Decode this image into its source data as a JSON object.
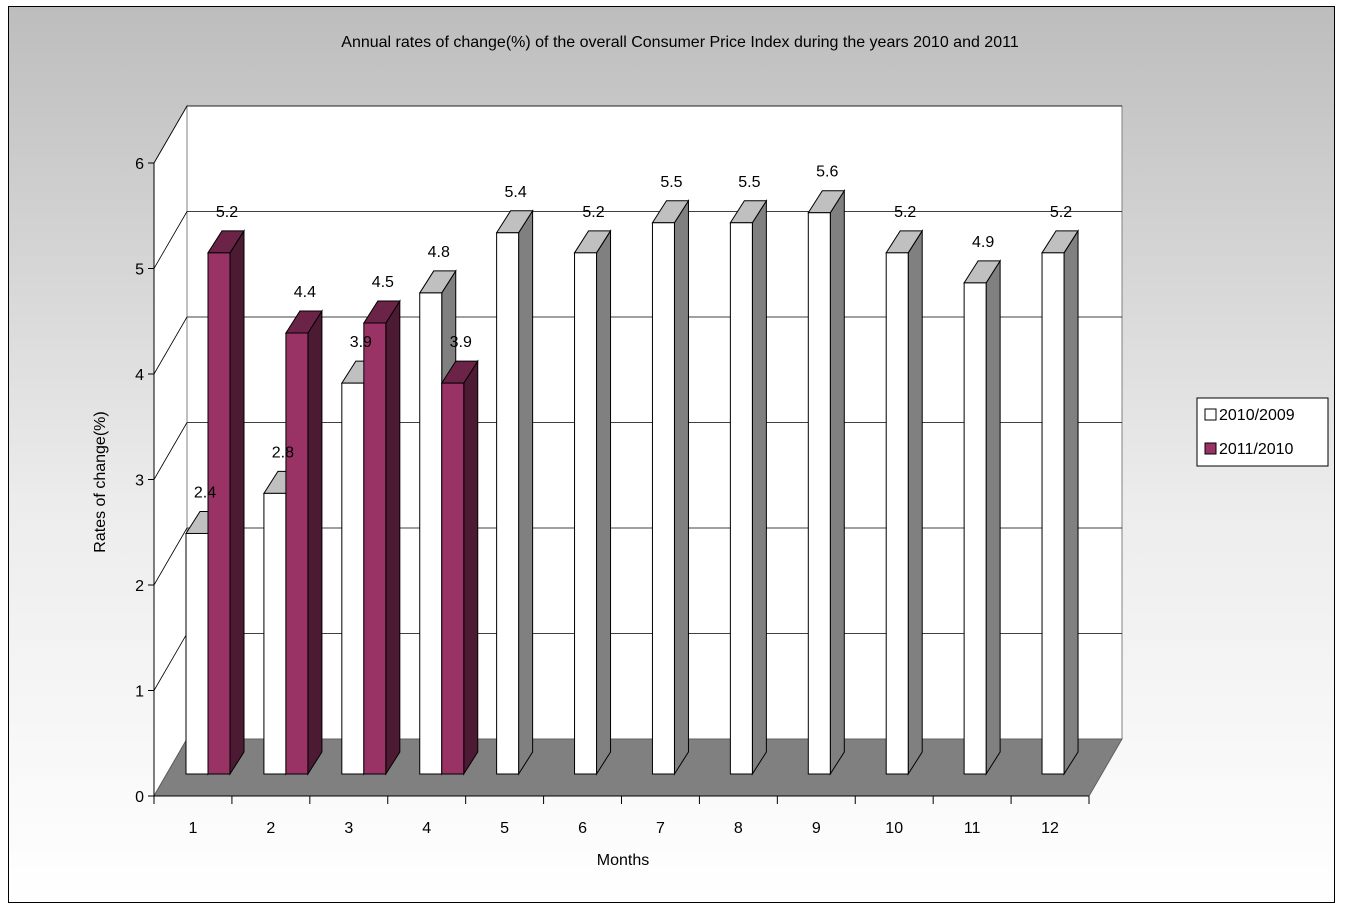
{
  "chart_data": {
    "type": "bar",
    "title": "Annual rates of change(%) of the overall Consumer Price Index during the years 2010 and 2011",
    "xlabel": "Months",
    "ylabel": "Rates of change(%)",
    "ylim": [
      0,
      6
    ],
    "yticks": [
      "0",
      "1",
      "2",
      "3",
      "4",
      "5",
      "6"
    ],
    "categories": [
      "1",
      "2",
      "3",
      "4",
      "5",
      "6",
      "7",
      "8",
      "9",
      "10",
      "11",
      "12"
    ],
    "grid": true,
    "legend_position": "right",
    "series": [
      {
        "name": "2010/2009",
        "color": "#ffffff",
        "values": [
          2.4,
          2.8,
          3.9,
          4.8,
          5.4,
          5.2,
          5.5,
          5.5,
          5.6,
          5.2,
          4.9,
          5.2
        ],
        "labels": [
          "2.4",
          "2.8",
          "3.9",
          "4.8",
          "5.4",
          "5.2",
          "5.5",
          "5.5",
          "5.6",
          "5.2",
          "4.9",
          "5.2"
        ]
      },
      {
        "name": "2011/2010",
        "color": "#993366",
        "values": [
          5.2,
          4.4,
          4.5,
          3.9,
          null,
          null,
          null,
          null,
          null,
          null,
          null,
          null
        ],
        "labels": [
          "5.2",
          "4.4",
          "4.5",
          "3.9",
          "",
          "",
          "",
          "",
          "",
          "",
          "",
          ""
        ]
      }
    ],
    "colors": {
      "plot_back_wall": "#ffffff",
      "floor": "#808080",
      "bar_side_white": "#808080",
      "bar_top_white": "#c0c0c0",
      "bar_side_purple": "#4d1a33",
      "bar_top_purple": "#6b2447",
      "outline": "#000000"
    }
  }
}
